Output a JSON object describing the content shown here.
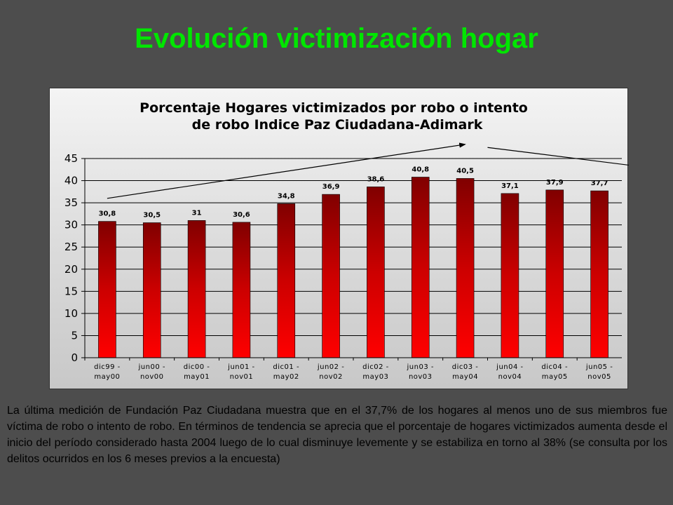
{
  "slide": {
    "title": "Evolución victimización hogar",
    "background_color": "#4d4d4d",
    "title_color": "#00e600"
  },
  "chart_data": {
    "type": "bar",
    "title_lines": [
      "Porcentaje Hogares victimizados por robo o intento",
      "de robo Indice Paz Ciudadana-Adimark"
    ],
    "categories": [
      [
        "dic99 -",
        "may00"
      ],
      [
        "jun00 -",
        "nov00"
      ],
      [
        "dic00 -",
        "may01"
      ],
      [
        "jun01 -",
        "nov01"
      ],
      [
        "dic01 -",
        "may02"
      ],
      [
        "jun02 -",
        "nov02"
      ],
      [
        "dic02 -",
        "may03"
      ],
      [
        "jun03 -",
        "nov03"
      ],
      [
        "dic03 -",
        "may04"
      ],
      [
        "jun04 -",
        "nov04"
      ],
      [
        "dic04 -",
        "may05"
      ],
      [
        "jun05 -",
        "nov05"
      ]
    ],
    "values": [
      30.8,
      30.5,
      31,
      30.6,
      34.8,
      36.9,
      38.6,
      40.8,
      40.5,
      37.1,
      37.9,
      37.7
    ],
    "value_labels": [
      "30,8",
      "30,5",
      "31",
      "30,6",
      "34,8",
      "36,9",
      "38,6",
      "40,8",
      "40,5",
      "37,1",
      "37,9",
      "37,7"
    ],
    "ylim": [
      0,
      45
    ],
    "yticks": [
      0,
      5,
      10,
      15,
      20,
      25,
      30,
      35,
      40,
      45
    ],
    "grid": true,
    "bar_color_top": "#800000",
    "bar_color_bottom": "#ff0000",
    "trend_arrows": [
      {
        "from_index": 0,
        "to_index": 8,
        "from_value": 36,
        "to_value": 48.2
      },
      {
        "from_index": 8.5,
        "to_index": 11.9,
        "from_value": 47.5,
        "to_value": 43.2
      }
    ]
  },
  "description": "La última medición de Fundación Paz Ciudadana muestra que en el 37,7% de los hogares al menos uno de sus miembros fue víctima de robo o intento de robo. En términos de tendencia se aprecia que el porcentaje de hogares victimizados aumenta desde el inicio del período considerado hasta 2004 luego de lo cual disminuye levemente y se estabiliza en torno al 38% (se consulta por los delitos ocurridos en los 6 meses previos a la encuesta)"
}
